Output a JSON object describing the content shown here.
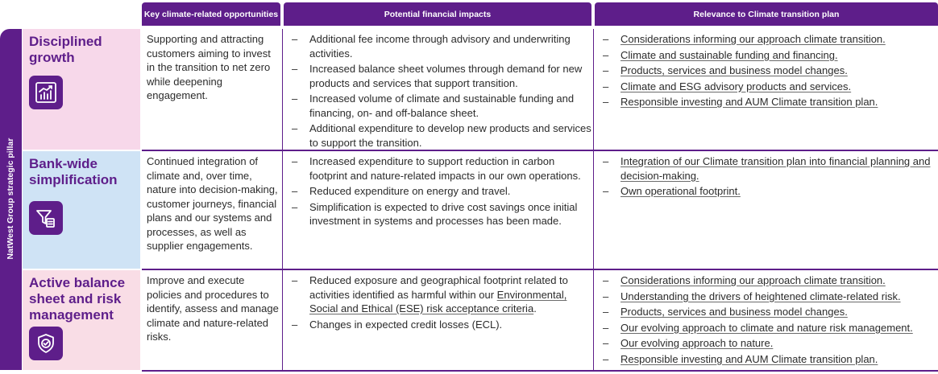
{
  "headers": {
    "opportunities": "Key climate-related opportunities",
    "impacts": "Potential financial impacts",
    "relevance": "Relevance to Climate transition plan"
  },
  "side_label": "NatWest Group strategic pillar",
  "rows": [
    {
      "pillar": "Disciplined growth",
      "icon": "growth-chart-icon",
      "opportunity": "Supporting and attracting customers aiming to invest in the transition to net zero while deepening engagement.",
      "impacts": [
        "Additional fee income through advisory and underwriting activities.",
        "Increased balance sheet volumes through demand for new products and services that support transition.",
        "Increased volume of climate and sustainable funding and financing, on- and off-balance sheet.",
        "Additional expenditure to develop new products and services to support the transition."
      ],
      "relevance": [
        "Considerations informing our approach climate transition.",
        "Climate and sustainable funding and financing.",
        "Products, services and business model changes.",
        "Climate and ESG advisory products and services.",
        "Responsible investing and AUM Climate transition plan."
      ]
    },
    {
      "pillar": "Bank-wide simplification",
      "icon": "filter-document-icon",
      "opportunity": "Continued integration of climate and, over time, nature into decision-making, customer journeys, financial plans and our systems and processes, as well as supplier engagements.",
      "impacts": [
        "Increased expenditure to support reduction in carbon footprint and nature-related impacts in our own operations.",
        "Reduced expenditure on energy and travel.",
        "Simplification is expected to drive cost savings once initial investment in systems and processes has been made."
      ],
      "relevance": [
        "Integration of our Climate transition plan into financial planning and decision-making.",
        "Own operational footprint."
      ]
    },
    {
      "pillar": "Active balance sheet and risk management",
      "icon": "shield-check-icon",
      "opportunity": "Improve and execute policies and procedures to identify, assess and manage climate and nature-related risks.",
      "impacts_first_prefix": "Reduced exposure and geographical footprint related to activities identified as harmful within our ",
      "impacts_first_link": "Environmental, Social and Ethical (ESE) risk acceptance criteria",
      "impacts_first_suffix": ".",
      "impacts": [
        "Changes in expected credit losses (ECL)."
      ],
      "relevance": [
        "Considerations informing our approach climate transition.",
        "Understanding the drivers of heightened climate-related risk.",
        "Products, services and business model changes.",
        "Our evolving approach to climate and nature risk management.",
        "Our evolving approach to nature.",
        "Responsible investing and AUM Climate transition plan."
      ]
    }
  ]
}
